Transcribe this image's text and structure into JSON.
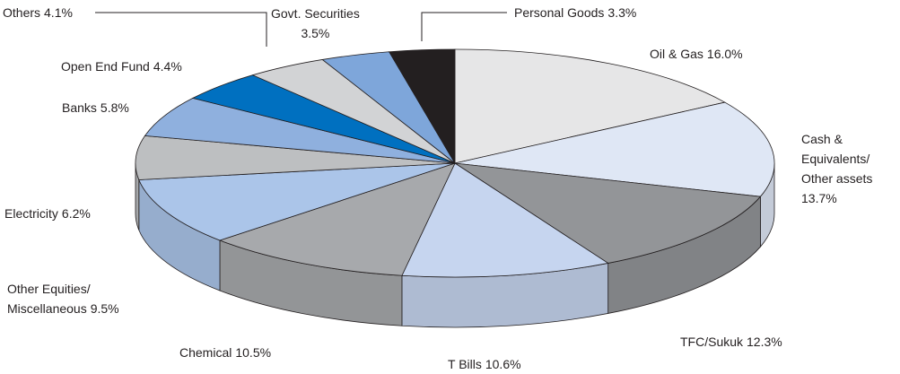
{
  "chart_data": {
    "type": "pie3d",
    "categories": [
      "Oil & Gas",
      "Cash &\nEquivalents/\nOther assets",
      "TFC/Sukuk",
      "T Bills",
      "Chemical",
      "Other Equities/\nMiscellaneous",
      "Electricity",
      "Banks",
      "Open End Fund",
      "Others",
      "Govt. Securities",
      "Personal Goods"
    ],
    "values": [
      16.0,
      13.7,
      12.3,
      10.6,
      10.5,
      9.5,
      6.2,
      5.8,
      4.4,
      4.1,
      3.5,
      3.3
    ],
    "value_labels": [
      "16.0%",
      "13.7%",
      "12.3%",
      "10.6%",
      "10.5%",
      "9.5%",
      "6.2%",
      "5.8%",
      "4.4%",
      "4.1%",
      "3.5%",
      "3.3%"
    ],
    "colors": [
      "#e6e6e7",
      "#dfe7f5",
      "#939598",
      "#c6d5ef",
      "#a7a9ac",
      "#abc5e9",
      "#bdbfc1",
      "#8fb0de",
      "#0070c0",
      "#d2d3d5",
      "#7ea6da",
      "#231f20"
    ]
  }
}
